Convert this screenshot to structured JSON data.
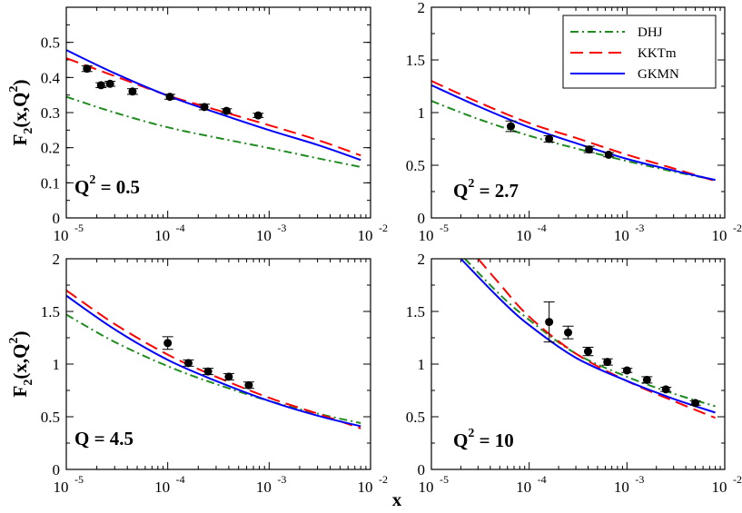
{
  "chart_data": [
    {
      "type": "line",
      "panel_label": "Q",
      "panel_label_sup": "2",
      "panel_label_value": " = 0.5",
      "xlabel": "",
      "ylabel_main": "F",
      "ylabel_sub": "2",
      "ylabel_rest": "(x,Q",
      "ylabel_sup": "2",
      "ylabel_close": ")",
      "xscale": "log",
      "xlim": [
        1e-05,
        0.01
      ],
      "ylim": [
        0,
        0.6
      ],
      "yticks": [
        "0",
        "0.1",
        "0.2",
        "0.3",
        "0.4",
        "0.5"
      ],
      "xticks": [
        {
          "base": "10",
          "exp": "-5"
        },
        {
          "base": "10",
          "exp": "-4"
        },
        {
          "base": "10",
          "exp": "-3"
        },
        {
          "base": "10",
          "exp": "-2"
        }
      ],
      "series": [
        {
          "name": "DHJ",
          "x": [
            1e-05,
            3e-05,
            0.0001,
            0.0003,
            0.001,
            0.003,
            0.008
          ],
          "y": [
            0.345,
            0.3,
            0.258,
            0.229,
            0.199,
            0.17,
            0.145
          ]
        },
        {
          "name": "KKTm",
          "x": [
            1e-05,
            3e-05,
            0.0001,
            0.0003,
            0.001,
            0.003,
            0.008
          ],
          "y": [
            0.455,
            0.404,
            0.349,
            0.308,
            0.264,
            0.222,
            0.178
          ]
        },
        {
          "name": "GKMN",
          "x": [
            1e-05,
            3e-05,
            0.0001,
            0.0003,
            0.001,
            0.003,
            0.008
          ],
          "y": [
            0.478,
            0.412,
            0.348,
            0.3,
            0.25,
            0.208,
            0.165
          ]
        }
      ],
      "points": [
        {
          "x": 1.6e-05,
          "y": 0.425,
          "err": 0.008
        },
        {
          "x": 2.2e-05,
          "y": 0.378,
          "err": 0.007
        },
        {
          "x": 2.7e-05,
          "y": 0.382,
          "err": 0.007
        },
        {
          "x": 4.5e-05,
          "y": 0.36,
          "err": 0.008
        },
        {
          "x": 0.000105,
          "y": 0.345,
          "err": 0.007
        },
        {
          "x": 0.00023,
          "y": 0.316,
          "err": 0.008
        },
        {
          "x": 0.00038,
          "y": 0.305,
          "err": 0.006
        },
        {
          "x": 0.00078,
          "y": 0.292,
          "err": 0.006
        }
      ]
    },
    {
      "type": "line",
      "panel_label": "Q",
      "panel_label_sup": "2",
      "panel_label_value": " = 2.7",
      "xlabel": "",
      "ylabel_main": "",
      "xscale": "log",
      "xlim": [
        1e-05,
        0.01
      ],
      "ylim": [
        0,
        2
      ],
      "yticks": [
        "0",
        "0.5",
        "1",
        "1.5",
        "2"
      ],
      "xticks": [
        {
          "base": "10",
          "exp": "-5"
        },
        {
          "base": "10",
          "exp": "-4"
        },
        {
          "base": "10",
          "exp": "-3"
        },
        {
          "base": "10",
          "exp": "-2"
        }
      ],
      "series": [
        {
          "name": "DHJ",
          "x": [
            1e-05,
            3e-05,
            0.0001,
            0.0003,
            0.001,
            0.003,
            0.008
          ],
          "y": [
            1.11,
            0.94,
            0.78,
            0.66,
            0.54,
            0.44,
            0.36
          ]
        },
        {
          "name": "KKTm",
          "x": [
            1e-05,
            3e-05,
            0.0001,
            0.0003,
            0.001,
            0.003,
            0.008
          ],
          "y": [
            1.3,
            1.1,
            0.9,
            0.76,
            0.6,
            0.47,
            0.35
          ]
        },
        {
          "name": "GKMN",
          "x": [
            1e-05,
            3e-05,
            0.0001,
            0.0003,
            0.001,
            0.003,
            0.008
          ],
          "y": [
            1.26,
            1.06,
            0.86,
            0.71,
            0.56,
            0.45,
            0.36
          ]
        }
      ],
      "points": [
        {
          "x": 6.5e-05,
          "y": 0.87,
          "err": 0.05
        },
        {
          "x": 0.00016,
          "y": 0.75,
          "err": 0.03
        },
        {
          "x": 0.00041,
          "y": 0.65,
          "err": 0.03
        },
        {
          "x": 0.00065,
          "y": 0.6,
          "err": 0.02
        }
      ]
    },
    {
      "type": "line",
      "panel_label": "Q",
      "panel_label_sup": "",
      "panel_label_value": " = 4.5",
      "xlabel": "",
      "ylabel_main": "F",
      "ylabel_sub": "2",
      "ylabel_rest": "(x,Q",
      "ylabel_sup": "2",
      "ylabel_close": ")",
      "xscale": "log",
      "xlim": [
        1e-05,
        0.01
      ],
      "ylim": [
        0,
        2
      ],
      "yticks": [
        "0",
        "0.5",
        "1",
        "1.5",
        "2"
      ],
      "xticks": [
        {
          "base": "10",
          "exp": "-5"
        },
        {
          "base": "10",
          "exp": "-4"
        },
        {
          "base": "10",
          "exp": "-3"
        },
        {
          "base": "10",
          "exp": "-2"
        }
      ],
      "series": [
        {
          "name": "DHJ",
          "x": [
            1e-05,
            3e-05,
            0.0001,
            0.0003,
            0.001,
            0.003,
            0.008
          ],
          "y": [
            1.47,
            1.21,
            0.98,
            0.81,
            0.65,
            0.53,
            0.44
          ]
        },
        {
          "name": "KKTm",
          "x": [
            1e-05,
            3e-05,
            0.0001,
            0.0003,
            0.001,
            0.003,
            0.008
          ],
          "y": [
            1.7,
            1.38,
            1.09,
            0.88,
            0.68,
            0.53,
            0.39
          ]
        },
        {
          "name": "GKMN",
          "x": [
            1e-05,
            3e-05,
            0.0001,
            0.0003,
            0.001,
            0.003,
            0.008
          ],
          "y": [
            1.65,
            1.33,
            1.04,
            0.84,
            0.65,
            0.51,
            0.41
          ]
        }
      ],
      "points": [
        {
          "x": 0.0001,
          "y": 1.2,
          "err": 0.06
        },
        {
          "x": 0.00016,
          "y": 1.01,
          "err": 0.03
        },
        {
          "x": 0.00025,
          "y": 0.93,
          "err": 0.03
        },
        {
          "x": 0.0004,
          "y": 0.88,
          "err": 0.03
        },
        {
          "x": 0.00063,
          "y": 0.8,
          "err": 0.03
        }
      ]
    },
    {
      "type": "line",
      "panel_label": "Q",
      "panel_label_sup": "2",
      "panel_label_value": " = 10",
      "xlabel": "",
      "ylabel_main": "",
      "xscale": "log",
      "xlim": [
        1e-05,
        0.01
      ],
      "ylim": [
        0,
        2
      ],
      "yticks": [
        "0",
        "0.5",
        "1",
        "1.5",
        "2"
      ],
      "xticks": [
        {
          "base": "10",
          "exp": "-5"
        },
        {
          "base": "10",
          "exp": "-4"
        },
        {
          "base": "10",
          "exp": "-3"
        },
        {
          "base": "10",
          "exp": "-2"
        }
      ],
      "series": [
        {
          "name": "DHJ",
          "x": [
            2.2e-05,
            5e-05,
            0.0001,
            0.0003,
            0.001,
            0.003,
            0.008
          ],
          "y": [
            2.0,
            1.66,
            1.42,
            1.1,
            0.88,
            0.72,
            0.6
          ]
        },
        {
          "name": "KKTm",
          "x": [
            3e-05,
            5e-05,
            0.0001,
            0.0003,
            0.001,
            0.003,
            0.008
          ],
          "y": [
            2.0,
            1.76,
            1.45,
            1.1,
            0.84,
            0.65,
            0.49
          ]
        },
        {
          "name": "GKMN",
          "x": [
            2e-05,
            5e-05,
            0.0001,
            0.0003,
            0.001,
            0.003,
            0.008
          ],
          "y": [
            2.0,
            1.62,
            1.37,
            1.06,
            0.84,
            0.67,
            0.54
          ]
        }
      ],
      "points": [
        {
          "x": 0.00016,
          "y": 1.4,
          "err": 0.19
        },
        {
          "x": 0.00025,
          "y": 1.3,
          "err": 0.06
        },
        {
          "x": 0.0004,
          "y": 1.12,
          "err": 0.04
        },
        {
          "x": 0.00063,
          "y": 1.02,
          "err": 0.03
        },
        {
          "x": 0.001,
          "y": 0.94,
          "err": 0.02
        },
        {
          "x": 0.0016,
          "y": 0.85,
          "err": 0.03
        },
        {
          "x": 0.0025,
          "y": 0.76,
          "err": 0.02
        },
        {
          "x": 0.005,
          "y": 0.63,
          "err": 0.02
        }
      ]
    }
  ],
  "figure": {
    "xlabel": "x",
    "legend": [
      {
        "name": "DHJ",
        "color": "#1e8c1e",
        "dash": "dashdot"
      },
      {
        "name": "KKTm",
        "color": "#ff0000",
        "dash": "dash"
      },
      {
        "name": "GKMN",
        "color": "#0000ff",
        "dash": "solid"
      }
    ],
    "colors": {
      "DHJ": "#1e8c1e",
      "KKTm": "#ff0000",
      "GKMN": "#0000ff",
      "points": "#000000"
    }
  }
}
